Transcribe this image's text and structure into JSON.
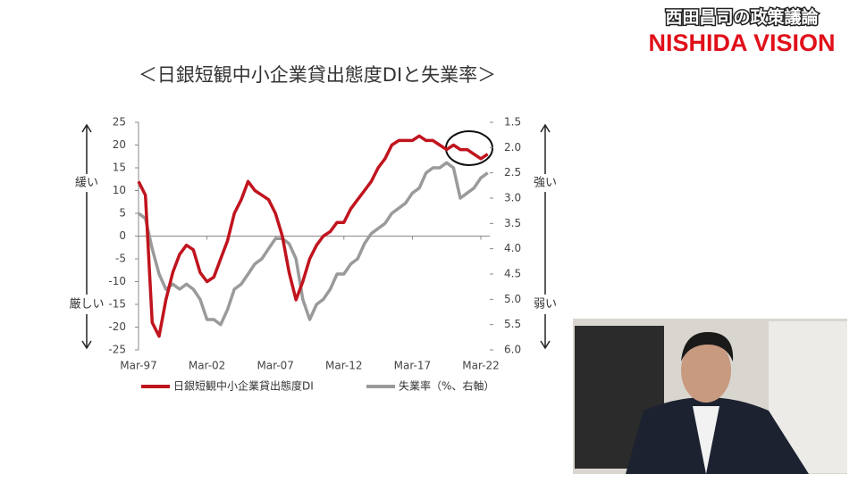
{
  "header": {
    "subtitle": "西田昌司の政策議論",
    "brand": "NISHIDA VISION"
  },
  "chart_data": {
    "type": "line",
    "title": "＜日銀短観中小企業貸出態度DIと失業率＞",
    "categories": [
      "Mar-97",
      null,
      null,
      null,
      null,
      null,
      null,
      null,
      null,
      null,
      "Mar-02",
      null,
      null,
      null,
      null,
      null,
      null,
      null,
      null,
      null,
      "Mar-07",
      null,
      null,
      null,
      null,
      null,
      null,
      null,
      null,
      null,
      "Mar-12",
      null,
      null,
      null,
      null,
      null,
      null,
      null,
      null,
      null,
      "Mar-17",
      null,
      null,
      null,
      null,
      null,
      null,
      null,
      null,
      null,
      "Mar-22",
      null
    ],
    "series": [
      {
        "name": "日銀短観中小企業貸出態度DI",
        "color": "#c0141e",
        "values": [
          12,
          9,
          -19,
          -22,
          -14,
          -8,
          -4,
          -2,
          -3,
          -8,
          -10,
          -9,
          -5,
          -1,
          5,
          8,
          12,
          10,
          9,
          8,
          5,
          0,
          -8,
          -14,
          -10,
          -5,
          -2,
          0,
          1,
          3,
          3,
          6,
          8,
          10,
          12,
          15,
          17,
          20,
          21,
          21,
          21,
          22,
          21,
          21,
          20,
          19,
          20,
          19,
          19,
          18,
          17,
          18
        ]
      },
      {
        "name": "失業率（%、右軸）",
        "color": "#9a9a9a",
        "axis": "y2",
        "values": [
          3.3,
          3.4,
          4.0,
          4.5,
          4.8,
          4.7,
          4.8,
          4.7,
          4.8,
          5.0,
          5.4,
          5.4,
          5.5,
          5.2,
          4.8,
          4.7,
          4.5,
          4.3,
          4.2,
          4.0,
          3.8,
          3.8,
          3.9,
          4.2,
          5.0,
          5.4,
          5.1,
          5.0,
          4.8,
          4.5,
          4.5,
          4.3,
          4.2,
          3.9,
          3.7,
          3.6,
          3.5,
          3.3,
          3.2,
          3.1,
          2.9,
          2.8,
          2.5,
          2.4,
          2.4,
          2.3,
          2.4,
          3.0,
          2.9,
          2.8,
          2.6,
          2.5
        ]
      }
    ],
    "ylim": [
      -25,
      25
    ],
    "yticks": [
      25,
      20,
      15,
      10,
      5,
      0,
      -5,
      -10,
      -15,
      -20,
      -25
    ],
    "y2lim": [
      6.0,
      1.5
    ],
    "y2ticks": [
      1.5,
      {
        "value": 2,
        "label": "2.0"
      },
      2.5,
      {
        "value": 3,
        "label": "3.0"
      },
      3.5,
      {
        "value": 4,
        "label": "4.0"
      },
      4.5,
      {
        "value": 5,
        "label": "5.0"
      },
      5.5,
      {
        "value": 6,
        "label": "6.0"
      }
    ],
    "left_annotations": [
      "緩い",
      "厳しい"
    ],
    "right_annotations": [
      "強い",
      "弱い"
    ]
  }
}
